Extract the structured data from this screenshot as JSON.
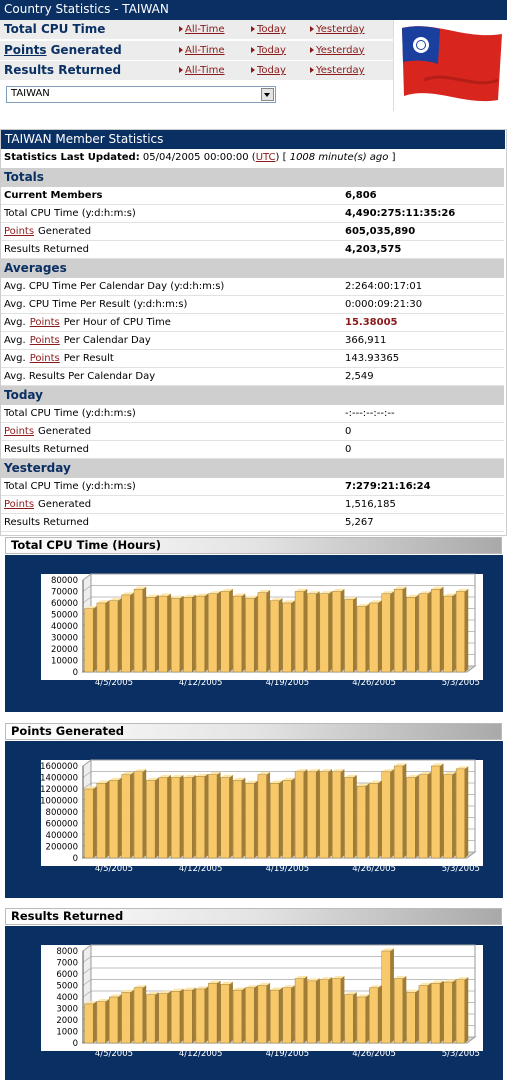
{
  "header": {
    "title": "Country Statistics - TAIWAN",
    "rows": [
      {
        "label": "Total CPU Time"
      },
      {
        "link": "Points",
        "label": "Generated"
      },
      {
        "label": "Results Returned"
      }
    ],
    "links": [
      "All-Time",
      "Today",
      "Yesterday"
    ],
    "dropdown": "TAIWAN"
  },
  "member": {
    "title": "TAIWAN Member Statistics",
    "updated_line": [
      "Statistics Last Updated:",
      "05/04/2005 00:00:00 (",
      "UTC",
      ") [",
      "1008 minute(s) ago",
      "]"
    ],
    "sections": [
      {
        "name": "Totals",
        "rows": [
          {
            "label": "Current Members",
            "value": "6,806"
          },
          {
            "label": "Total CPU Time (y:d:h:m:s)",
            "value": "4,490:275:11:35:26"
          },
          {
            "link": "Points",
            "label": "Generated",
            "value": "605,035,890"
          },
          {
            "label": "Results Returned",
            "value": "4,203,575"
          }
        ]
      },
      {
        "name": "Averages",
        "rows": [
          {
            "label": "Avg. CPU Time Per Calendar Day (y:d:h:m:s)",
            "value": "2:264:00:17:01"
          },
          {
            "label": "Avg. CPU Time Per Result (y:d:h:m:s)",
            "value": "0:000:09:21:30"
          },
          {
            "prefix": "Avg.",
            "link": "Points",
            "label": "Per Hour of CPU Time",
            "value": "15.38005"
          },
          {
            "prefix": "Avg.",
            "link": "Points",
            "label": "Per Calendar Day",
            "value": "366,911"
          },
          {
            "prefix": "Avg.",
            "link": "Points",
            "label": "Per Result",
            "value": "143.93365"
          },
          {
            "label": "Avg. Results Per Calendar Day",
            "value": "2,549"
          }
        ]
      },
      {
        "name": "Today",
        "rows": [
          {
            "label": "Total CPU Time (y:d:h:m:s)",
            "value": "-:---:--:--:--"
          },
          {
            "link": "Points",
            "label": "Generated",
            "value": "0"
          },
          {
            "label": "Results Returned",
            "value": "0"
          }
        ]
      },
      {
        "name": "Yesterday",
        "rows": [
          {
            "label": "Total CPU Time (y:d:h:m:s)",
            "value": "7:279:21:16:24"
          },
          {
            "link": "Points",
            "label": "Generated",
            "value": "1,516,185"
          },
          {
            "label": "Results Returned",
            "value": "5,267"
          }
        ]
      }
    ]
  },
  "chart_data": [
    {
      "type": "bar",
      "title": "Total CPU Time (Hours)",
      "color": "#f7c96b",
      "grid": true,
      "categories": [
        null,
        null,
        "4/5/2005",
        null,
        null,
        null,
        null,
        null,
        null,
        "4/12/2005",
        null,
        null,
        null,
        null,
        null,
        null,
        "4/19/2005",
        null,
        null,
        null,
        null,
        null,
        null,
        "4/26/2005",
        null,
        null,
        null,
        null,
        null,
        null,
        "5/3/2005"
      ],
      "values": [
        55000,
        60000,
        62000,
        67000,
        72000,
        65000,
        66000,
        64000,
        65000,
        66000,
        68000,
        70000,
        66000,
        64000,
        69000,
        62000,
        60000,
        70000,
        68000,
        68000,
        70000,
        63000,
        57000,
        60000,
        68000,
        72000,
        65000,
        68000,
        72000,
        66000,
        70000
      ],
      "ylim": [
        0,
        80000
      ],
      "yticks": [
        0,
        10000,
        20000,
        30000,
        40000,
        50000,
        60000,
        70000,
        80000
      ]
    },
    {
      "type": "bar",
      "title": "Points Generated",
      "color": "#f7c96b",
      "grid": true,
      "categories": [
        null,
        null,
        "4/5/2005",
        null,
        null,
        null,
        null,
        null,
        null,
        "4/12/2005",
        null,
        null,
        null,
        null,
        null,
        null,
        "4/19/2005",
        null,
        null,
        null,
        null,
        null,
        null,
        "4/26/2005",
        null,
        null,
        null,
        null,
        null,
        null,
        "5/3/2005"
      ],
      "values": [
        1200000,
        1300000,
        1350000,
        1450000,
        1500000,
        1350000,
        1400000,
        1400000,
        1400000,
        1420000,
        1450000,
        1400000,
        1350000,
        1300000,
        1450000,
        1300000,
        1350000,
        1500000,
        1500000,
        1500000,
        1500000,
        1400000,
        1250000,
        1300000,
        1500000,
        1600000,
        1400000,
        1450000,
        1600000,
        1450000,
        1550000
      ],
      "ylim": [
        0,
        1600000
      ],
      "yticks": [
        0,
        200000,
        400000,
        600000,
        800000,
        1000000,
        1200000,
        1400000,
        1600000
      ]
    },
    {
      "type": "bar",
      "title": "Results Returned",
      "color": "#f7c96b",
      "grid": true,
      "categories": [
        null,
        null,
        "4/5/2005",
        null,
        null,
        null,
        null,
        null,
        null,
        "4/12/2005",
        null,
        null,
        null,
        null,
        null,
        null,
        "4/19/2005",
        null,
        null,
        null,
        null,
        null,
        null,
        "4/26/2005",
        null,
        null,
        null,
        null,
        null,
        null,
        "5/3/2005"
      ],
      "values": [
        3400,
        3600,
        4000,
        4400,
        4800,
        4200,
        4300,
        4500,
        4600,
        4700,
        5200,
        5100,
        4600,
        4800,
        5000,
        4600,
        4800,
        5600,
        5400,
        5500,
        5600,
        4200,
        4000,
        4800,
        8000,
        5600,
        4400,
        5000,
        5200,
        5300,
        5500
      ],
      "ylim": [
        0,
        8000
      ],
      "yticks": [
        0,
        1000,
        2000,
        3000,
        4000,
        5000,
        6000,
        7000,
        8000
      ]
    }
  ]
}
